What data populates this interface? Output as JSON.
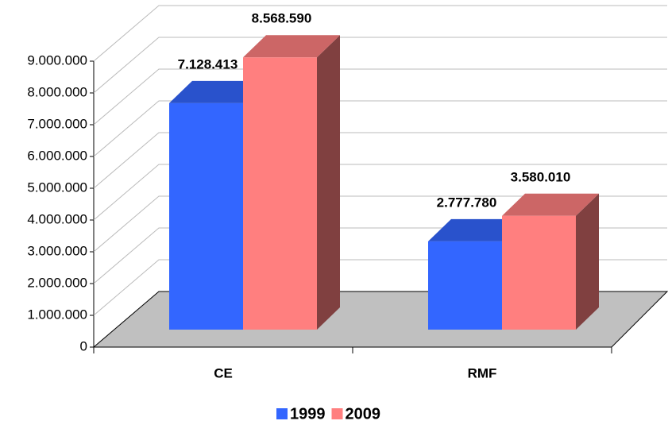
{
  "chart_data": {
    "type": "bar3d",
    "categories": [
      "CE",
      "RMF"
    ],
    "series": [
      {
        "name": "1999",
        "color": "#3366ff",
        "values": [
          7128413,
          2777780
        ],
        "value_labels": [
          "7.128.413",
          "2.777.780"
        ]
      },
      {
        "name": "2009",
        "color": "#ff7f7f",
        "values": [
          8568590,
          3580010
        ],
        "value_labels": [
          "8.568.590",
          "3.580.010"
        ]
      }
    ],
    "ylim": [
      0,
      9000000
    ],
    "yticks": [
      0,
      {
        "value": 1000000,
        "label": "1.000.000"
      },
      {
        "value": 2000000,
        "label": "2.000.000"
      },
      {
        "value": 3000000,
        "label": "3.000.000"
      },
      {
        "value": 4000000,
        "label": "4.000.000"
      },
      {
        "value": 5000000,
        "label": "5.000.000"
      },
      {
        "value": 6000000,
        "label": "6.000.000"
      },
      {
        "value": 7000000,
        "label": "7.000.000"
      },
      {
        "value": 8000000,
        "label": "8.000.000"
      },
      {
        "value": 9000000,
        "label": "9.000.000"
      }
    ],
    "grid": true,
    "legend": "bottom"
  }
}
